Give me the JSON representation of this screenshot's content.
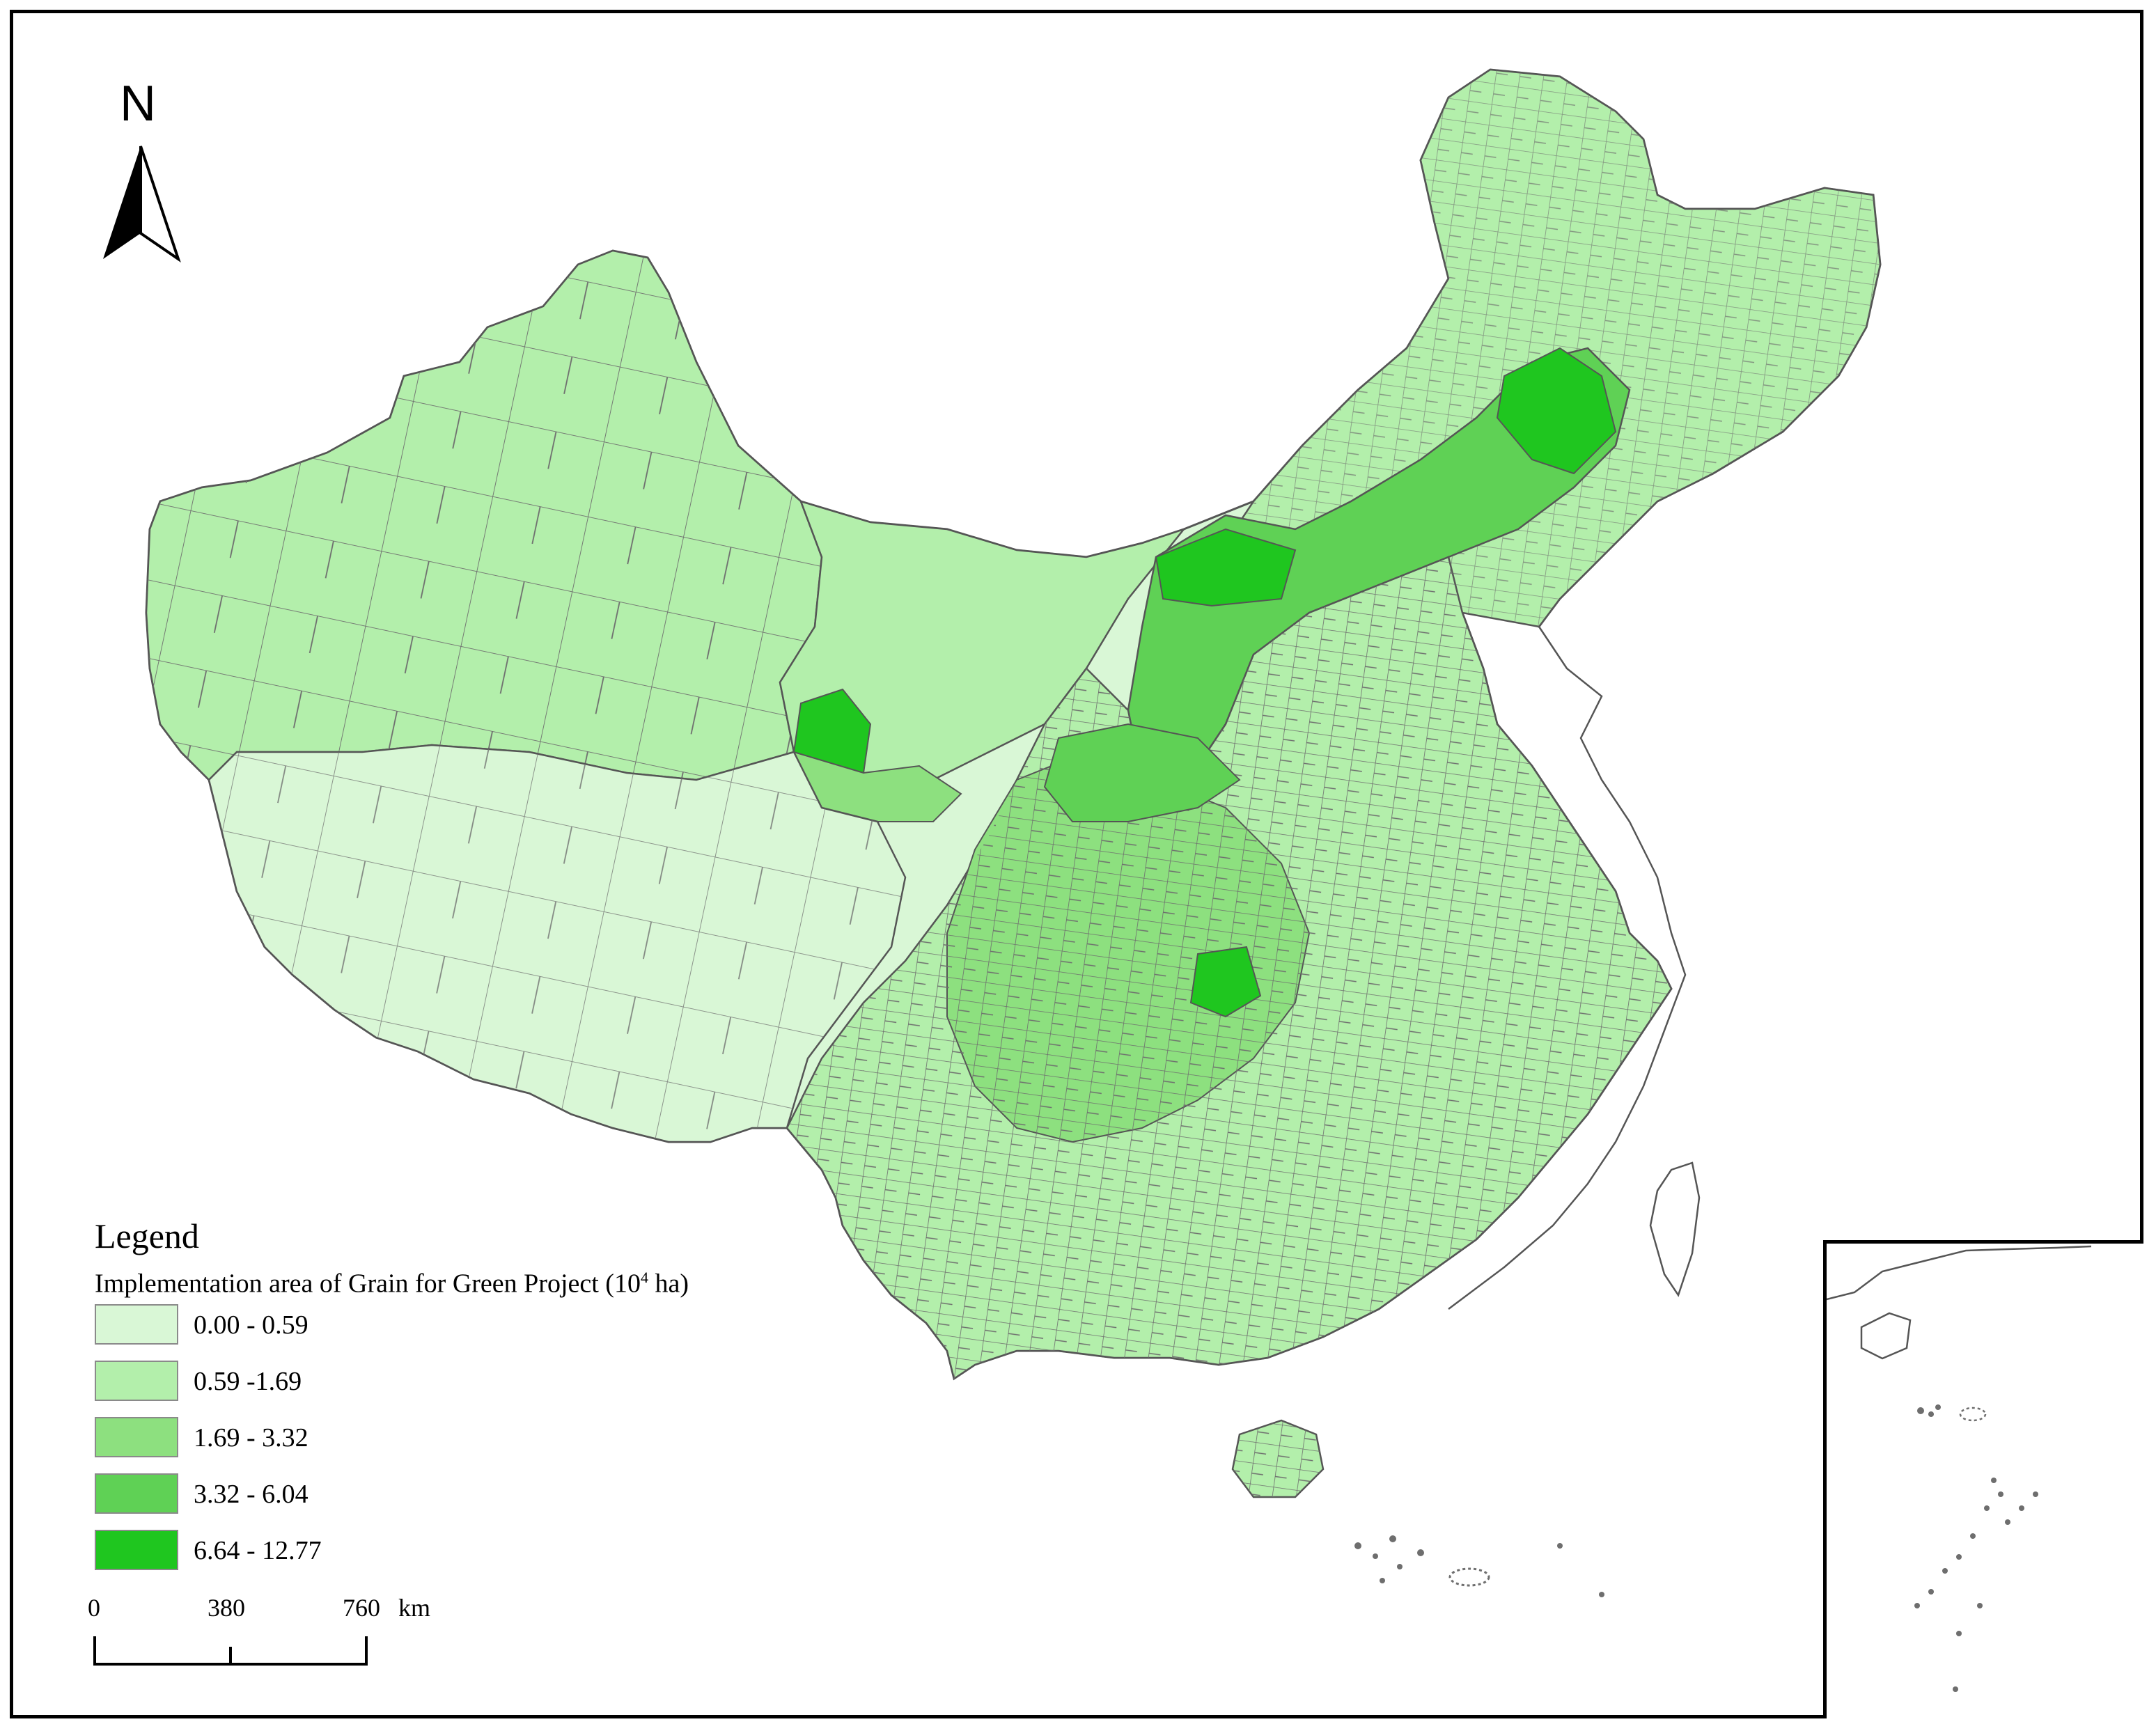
{
  "north_arrow": {
    "label": "N"
  },
  "legend": {
    "title": "Legend",
    "subtitle_main": "Implementation area of Grain for Green Project (10",
    "subtitle_exp": "4",
    "subtitle_unit": " ha)",
    "classes": [
      {
        "label": "0.00 - 0.59",
        "color": "#d9f7d6"
      },
      {
        "label": "0.59 -1.69",
        "color": "#b3efab"
      },
      {
        "label": "1.69 - 3.32",
        "color": "#8de07f"
      },
      {
        "label": "3.32 - 6.04",
        "color": "#5fd155"
      },
      {
        "label": "6.64 - 12.77",
        "color": "#1fc61f"
      }
    ]
  },
  "scale_bar": {
    "ticks": [
      "0",
      "380",
      "760"
    ],
    "unit": "km"
  },
  "colors": {
    "border": "#6e6e6e",
    "outline": "#555555"
  }
}
